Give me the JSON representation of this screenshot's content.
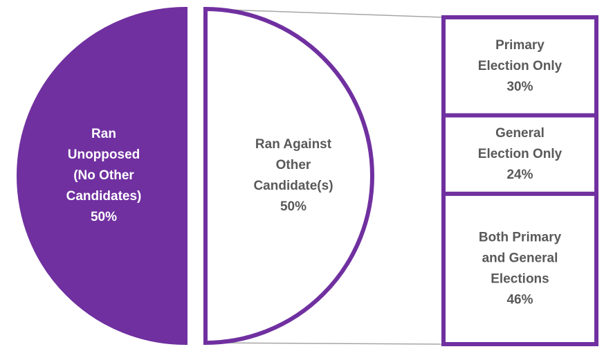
{
  "chart_data": {
    "type": "bar-of-pie",
    "title": "",
    "accent_color": "#7030a0",
    "text_dark_color": "#595959",
    "pie": [
      {
        "name": "Ran Unopposed (No Other Candidates)",
        "label_lines": [
          "Ran",
          "Unopposed",
          "(No Other",
          "Candidates)"
        ],
        "value_label": "50%",
        "value": 50,
        "fill": "#7030a0",
        "text_color": "#ffffff"
      },
      {
        "name": "Ran Against Other Candidate(s)",
        "label_lines": [
          "Ran Against",
          "Other",
          "Candidate(s)"
        ],
        "value_label": "50%",
        "value": 50,
        "fill": "#ffffff",
        "text_color": "#595959"
      }
    ],
    "breakdown_of": "Ran Against Other Candidate(s)",
    "breakdown": [
      {
        "name": "Primary Election Only",
        "label_lines": [
          "Primary",
          "Election Only"
        ],
        "value_label": "30%",
        "value": 30
      },
      {
        "name": "General Election Only",
        "label_lines": [
          "General",
          "Election Only"
        ],
        "value_label": "24%",
        "value": 24
      },
      {
        "name": "Both Primary and General Elections",
        "label_lines": [
          "Both Primary",
          "and General",
          "Elections"
        ],
        "value_label": "46%",
        "value": 46
      }
    ]
  }
}
